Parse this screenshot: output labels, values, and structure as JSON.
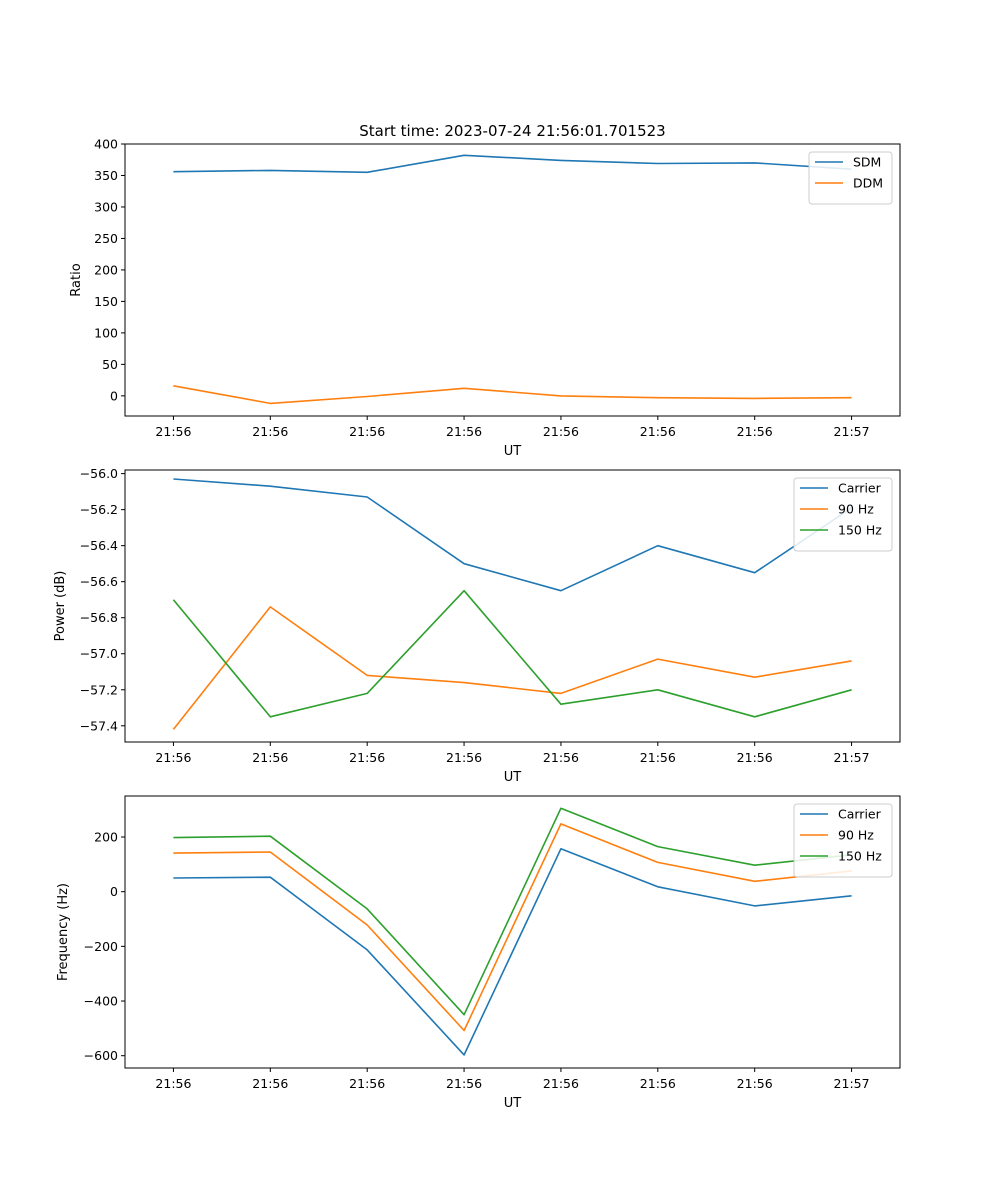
{
  "figure_title": "Start time: 2023-07-24 21:56:01.701523",
  "chart_data": [
    {
      "type": "line",
      "xlabel": "UT",
      "ylabel": "Ratio",
      "xticks": [
        "21:56",
        "21:56",
        "21:56",
        "21:56",
        "21:56",
        "21:56",
        "21:56",
        "21:57"
      ],
      "xrange": [
        -0.5,
        7.5
      ],
      "x": [
        0,
        1,
        2,
        3,
        4,
        5,
        6,
        7
      ],
      "ylim": [
        -32,
        400
      ],
      "yticks": [
        0,
        50,
        100,
        150,
        200,
        250,
        300,
        350,
        400
      ],
      "ytick_labels": [
        "0",
        "50",
        "100",
        "150",
        "200",
        "250",
        "300",
        "350",
        "400"
      ],
      "legend": "top-right",
      "series": [
        {
          "name": "SDM",
          "color": "#1f77b4",
          "values": [
            356,
            358,
            355,
            382,
            374,
            369,
            370,
            360
          ]
        },
        {
          "name": "DDM",
          "color": "#ff7f0e",
          "values": [
            16,
            -12,
            -1,
            12,
            0,
            -3,
            -4,
            -3
          ]
        }
      ]
    },
    {
      "type": "line",
      "xlabel": "UT",
      "ylabel": "Power (dB)",
      "xticks": [
        "21:56",
        "21:56",
        "21:56",
        "21:56",
        "21:56",
        "21:56",
        "21:56",
        "21:57"
      ],
      "xrange": [
        -0.5,
        7.5
      ],
      "x": [
        0,
        1,
        2,
        3,
        4,
        5,
        6,
        7
      ],
      "ylim": [
        -57.49,
        -55.98
      ],
      "yticks": [
        -56.0,
        -56.2,
        -56.4,
        -56.6,
        -56.8,
        -57.0,
        -57.2,
        -57.4
      ],
      "ytick_labels": [
        "−56.0",
        "−56.2",
        "−56.4",
        "−56.6",
        "−56.8",
        "−57.0",
        "−57.2",
        "−57.4"
      ],
      "legend": "top-right",
      "series": [
        {
          "name": "Carrier",
          "color": "#1f77b4",
          "values": [
            -56.03,
            -56.07,
            -56.13,
            -56.5,
            -56.65,
            -56.4,
            -56.55,
            -56.19
          ]
        },
        {
          "name": "90 Hz",
          "color": "#ff7f0e",
          "values": [
            -57.42,
            -56.74,
            -57.12,
            -57.16,
            -57.22,
            -57.03,
            -57.13,
            -57.04
          ]
        },
        {
          "name": "150 Hz",
          "color": "#2ca02c",
          "values": [
            -56.7,
            -57.35,
            -57.22,
            -56.65,
            -57.28,
            -57.2,
            -57.35,
            -57.2
          ]
        }
      ]
    },
    {
      "type": "line",
      "xlabel": "UT",
      "ylabel": "Frequency (Hz)",
      "xticks": [
        "21:56",
        "21:56",
        "21:56",
        "21:56",
        "21:56",
        "21:56",
        "21:56",
        "21:57"
      ],
      "xrange": [
        -0.5,
        7.5
      ],
      "x": [
        0,
        1,
        2,
        3,
        4,
        5,
        6,
        7
      ],
      "ylim": [
        -645,
        350
      ],
      "yticks": [
        200,
        0,
        -200,
        -400,
        -600
      ],
      "ytick_labels": [
        "200",
        "0",
        "−200",
        "−400",
        "−600"
      ],
      "legend": "top-right",
      "series": [
        {
          "name": "Carrier",
          "color": "#1f77b4",
          "values": [
            50,
            53,
            -213,
            -597,
            157,
            18,
            -52,
            -15
          ]
        },
        {
          "name": "90 Hz",
          "color": "#ff7f0e",
          "values": [
            141,
            145,
            -122,
            -508,
            248,
            107,
            38,
            76
          ]
        },
        {
          "name": "150 Hz",
          "color": "#2ca02c",
          "values": [
            198,
            203,
            -63,
            -450,
            305,
            165,
            97,
            135
          ]
        }
      ]
    }
  ]
}
